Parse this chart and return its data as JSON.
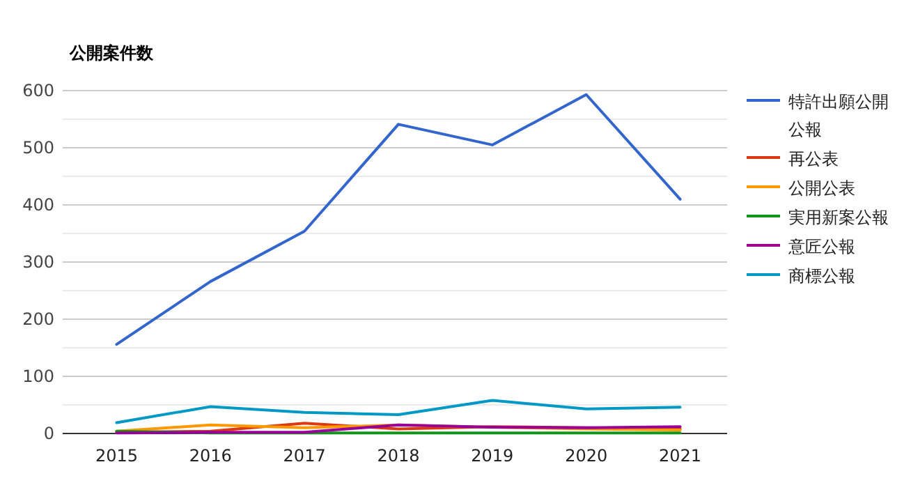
{
  "chart_data": {
    "type": "line",
    "title": "公開案件数",
    "categories": [
      "2015",
      "2016",
      "2017",
      "2018",
      "2019",
      "2020",
      "2021"
    ],
    "series": [
      {
        "name": "特許出願公開公報",
        "color": "#3366cc",
        "values": [
          156,
          266,
          354,
          541,
          505,
          593,
          410
        ]
      },
      {
        "name": "再公表",
        "color": "#dc3912",
        "values": [
          2,
          4,
          18,
          8,
          12,
          10,
          8
        ]
      },
      {
        "name": "公開公表",
        "color": "#ff9900",
        "values": [
          4,
          15,
          10,
          15,
          11,
          8,
          6
        ]
      },
      {
        "name": "実用新案公報",
        "color": "#109618",
        "values": [
          4,
          1,
          1,
          1,
          1,
          1,
          1
        ]
      },
      {
        "name": "意匠公報",
        "color": "#990099",
        "values": [
          1,
          2,
          2,
          15,
          11,
          10,
          12
        ]
      },
      {
        "name": "商標公報",
        "color": "#0099c6",
        "values": [
          19,
          47,
          37,
          33,
          58,
          43,
          46
        ]
      }
    ],
    "ylim": [
      0,
      600
    ],
    "yticks": [
      0,
      {
        "value": 50,
        "label": null
      },
      100,
      {
        "value": 150,
        "label": null
      },
      200,
      {
        "value": 250,
        "label": null
      },
      300,
      {
        "value": 350,
        "label": null
      },
      400,
      {
        "value": 450,
        "label": null
      },
      500,
      {
        "value": 550,
        "label": null
      },
      600
    ],
    "grid": "y",
    "legend": "right",
    "marker": "none",
    "line_style": "solid"
  }
}
